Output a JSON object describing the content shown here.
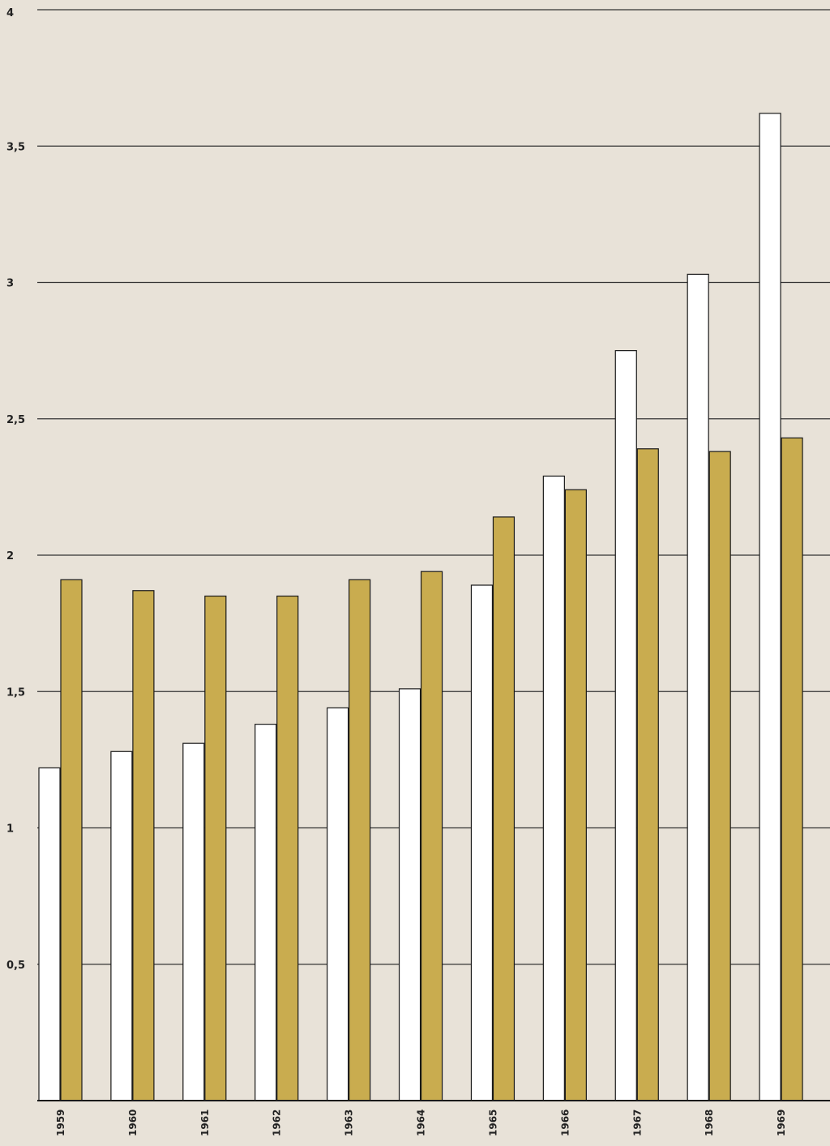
{
  "chart_data": {
    "type": "bar",
    "title": "",
    "xlabel": "",
    "ylabel": "",
    "categories": [
      "1959",
      "1960",
      "1961",
      "1962",
      "1963",
      "1964",
      "1965",
      "1966",
      "1967",
      "1968",
      "1969"
    ],
    "series": [
      {
        "color": "#ffffff",
        "values": [
          1.22,
          1.28,
          1.31,
          1.38,
          1.44,
          1.51,
          1.89,
          2.29,
          2.75,
          3.03,
          3.62
        ]
      },
      {
        "color": "#c9ac4f",
        "values": [
          1.91,
          1.87,
          1.85,
          1.85,
          1.91,
          1.94,
          2.14,
          2.24,
          2.39,
          2.38,
          2.43
        ]
      }
    ],
    "ylim": [
      0,
      4
    ],
    "yticks": [
      {
        "value": 0.5,
        "label": "0,5"
      },
      {
        "value": 1,
        "label": "1"
      },
      {
        "value": 1.5,
        "label": "1,5"
      },
      {
        "value": 2,
        "label": "2"
      },
      {
        "value": 2.5,
        "label": "2,5"
      },
      {
        "value": 3,
        "label": "3"
      },
      {
        "value": 3.5,
        "label": "3,5"
      },
      {
        "value": 4,
        "label": "4"
      }
    ],
    "grid": true,
    "legend": "none",
    "background_color": "#e8e2d8",
    "gridline_color": "#333333"
  }
}
